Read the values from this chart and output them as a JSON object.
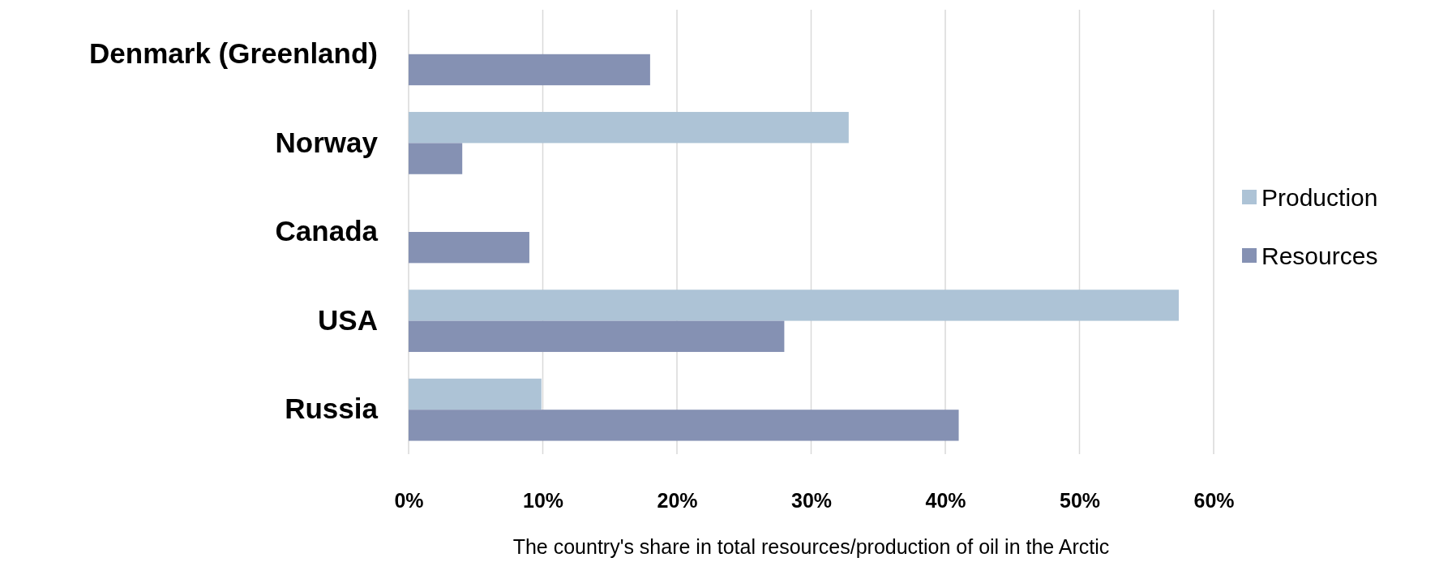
{
  "chart_data": {
    "type": "bar",
    "orientation": "horizontal",
    "xlabel": "The country's share in total resources/production of oil in the Arctic",
    "categories": [
      "Denmark (Greenland)",
      "Norway",
      "Canada",
      "USA",
      "Russia"
    ],
    "series": [
      {
        "name": "Production",
        "color": "#adc3d6",
        "values": [
          null,
          32.8,
          null,
          57.4,
          9.9
        ]
      },
      {
        "name": "Resources",
        "color": "#8591b3",
        "values": [
          18.0,
          4.0,
          9.0,
          28.0,
          41.0
        ]
      }
    ],
    "xlim": [
      0,
      60
    ],
    "xticks": [
      {
        "value": 0,
        "label": "0%"
      },
      {
        "value": 10,
        "label": "10%"
      },
      {
        "value": 20,
        "label": "20%"
      },
      {
        "value": 30,
        "label": "30%"
      },
      {
        "value": 40,
        "label": "40%"
      },
      {
        "value": 50,
        "label": "50%"
      },
      {
        "value": 60,
        "label": "60%"
      }
    ],
    "grid": "x",
    "legend": "right"
  }
}
